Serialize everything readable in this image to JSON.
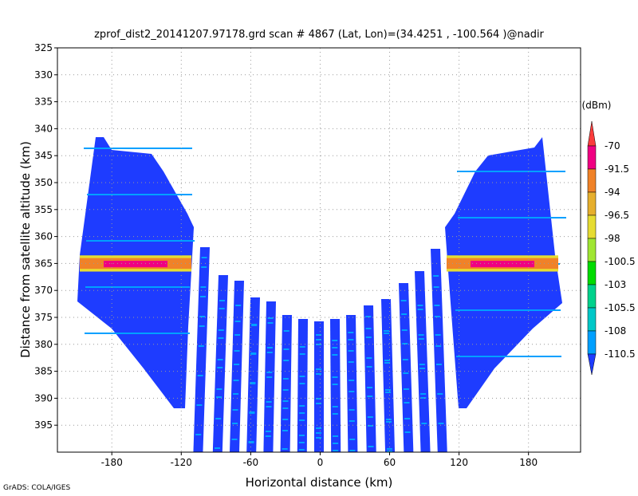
{
  "chart_data": {
    "type": "shaded",
    "title": "zprof_dist2_20141207.97178.grd  scan # 4867  (Lat, Lon)=(34.4251 , -100.564 )@nadir",
    "x_label": "Horizontal distance (km)",
    "y_label": "Distance from satellite altitude (km)",
    "xlim": [
      -227,
      225
    ],
    "xticks": [
      -180,
      -120,
      -60,
      0,
      60,
      120,
      180
    ],
    "ylim": [
      400,
      325
    ],
    "yticks": [
      325,
      330,
      335,
      340,
      345,
      350,
      355,
      360,
      365,
      370,
      375,
      380,
      385,
      390,
      395
    ],
    "grid": true,
    "colorbar": {
      "unit_label": "(dBm)",
      "levels": [
        -70,
        -91.5,
        -94,
        -96.5,
        -98,
        -100.5,
        -103,
        -105.5,
        -108,
        -110.5
      ],
      "colors": [
        "#fa3c3c",
        "#f00082",
        "#f08228",
        "#e6af2d",
        "#e6dc32",
        "#a0e632",
        "#00dc00",
        "#00d28c",
        "#00c8c8",
        "#00a0ff",
        "#1e3cff"
      ]
    },
    "footer": "GrADS: COLA/IGES"
  }
}
